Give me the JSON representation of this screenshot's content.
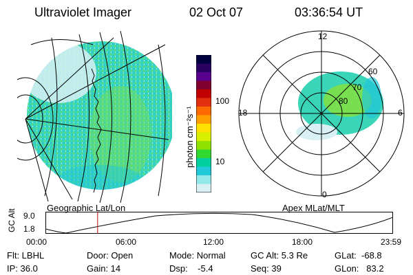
{
  "header": {
    "instrument": "Ultraviolet Imager",
    "date": "02 Oct 07",
    "time": "03:36:54 UT"
  },
  "left_panel": {
    "label": "Geographic Lat/Lon"
  },
  "right_panel": {
    "label": "Apex MLat/MLT",
    "mlt_labels": [
      "12",
      "18",
      "6",
      "0"
    ],
    "lat_labels": [
      "60",
      "70",
      "80"
    ]
  },
  "colorbar": {
    "unit_label": "photon cm⁻²s⁻¹",
    "ticks": [
      "100",
      "10"
    ],
    "colors": [
      "#000040",
      "#2a0060",
      "#5a0090",
      "#800030",
      "#c00000",
      "#e03010",
      "#ff6a00",
      "#ffa000",
      "#ffe000",
      "#d8f000",
      "#90e000",
      "#30d830",
      "#00d0a0",
      "#20c8d8",
      "#90e8e8",
      "#d8f0f4"
    ]
  },
  "altitude_plot": {
    "ylabel": "GC Alt",
    "y_ticks": [
      "9.0",
      "1.8"
    ],
    "x_ticks": [
      "00:00",
      "06:00",
      "12:00",
      "18:00",
      "23:59"
    ],
    "marker_time_hours": 3.6
  },
  "info": {
    "flt": "Flt: LBHL",
    "ip": "IP: 36.0",
    "door": "Door: Open",
    "gain": "Gain: 14",
    "mode": "Mode: Normal",
    "dsp": "Dsp:    -5.4",
    "gc_alt": "GC Alt: 5.3 Re",
    "seq": "Seq: 39",
    "glat": "GLat:  -68.8",
    "glon": "GLon:   83.2"
  },
  "colors": {
    "marker": "#c00000",
    "aurora_main": "#30d8b0",
    "aurora_core": "#70e040"
  }
}
